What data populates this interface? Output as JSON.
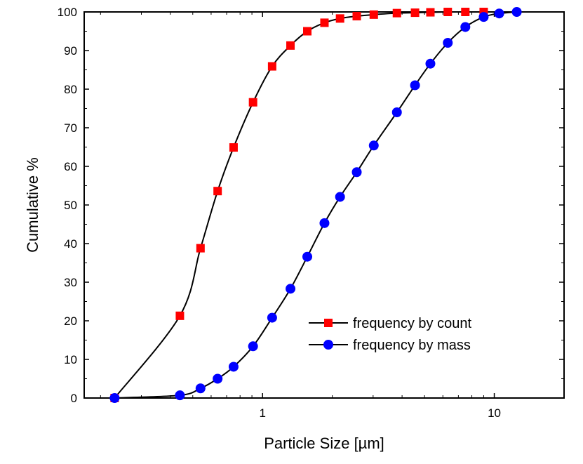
{
  "chart_data": {
    "type": "line",
    "title": "",
    "xlabel": "Particle Size [µm]",
    "ylabel": "Cumulative %",
    "xscale": "log",
    "xlim": [
      0.17,
      20
    ],
    "ylim": [
      0,
      100
    ],
    "x_ticks": [
      {
        "value": 1,
        "label": "1"
      },
      {
        "value": 10,
        "label": "10"
      }
    ],
    "y_ticks": [
      0,
      10,
      20,
      30,
      40,
      50,
      60,
      70,
      80,
      90,
      100
    ],
    "grid": false,
    "legend_position": "bottom-right",
    "series": [
      {
        "name": "frequency by count",
        "color": "#ff0000",
        "marker": "square",
        "x": [
          0.23,
          0.44,
          0.54,
          0.64,
          0.75,
          0.91,
          1.1,
          1.32,
          1.56,
          1.85,
          2.16,
          2.55,
          3.02,
          3.8,
          4.55,
          5.3,
          6.3,
          7.5,
          9.0
        ],
        "y": [
          0,
          21.3,
          38.8,
          53.6,
          64.9,
          76.6,
          85.9,
          91.3,
          95.0,
          97.2,
          98.3,
          98.9,
          99.3,
          99.7,
          99.8,
          99.9,
          100,
          100,
          100
        ]
      },
      {
        "name": "frequency by mass",
        "color": "#0000ff",
        "marker": "circle",
        "x": [
          0.23,
          0.44,
          0.54,
          0.64,
          0.75,
          0.91,
          1.1,
          1.32,
          1.56,
          1.85,
          2.16,
          2.55,
          3.02,
          3.8,
          4.55,
          5.3,
          6.3,
          7.5,
          9.0,
          10.5,
          12.5
        ],
        "y": [
          0,
          0.7,
          2.5,
          5.0,
          8.1,
          13.4,
          20.8,
          28.3,
          36.6,
          45.3,
          52.1,
          58.5,
          65.4,
          74.0,
          81.0,
          86.6,
          92.0,
          96.1,
          98.7,
          99.6,
          100
        ]
      }
    ]
  }
}
